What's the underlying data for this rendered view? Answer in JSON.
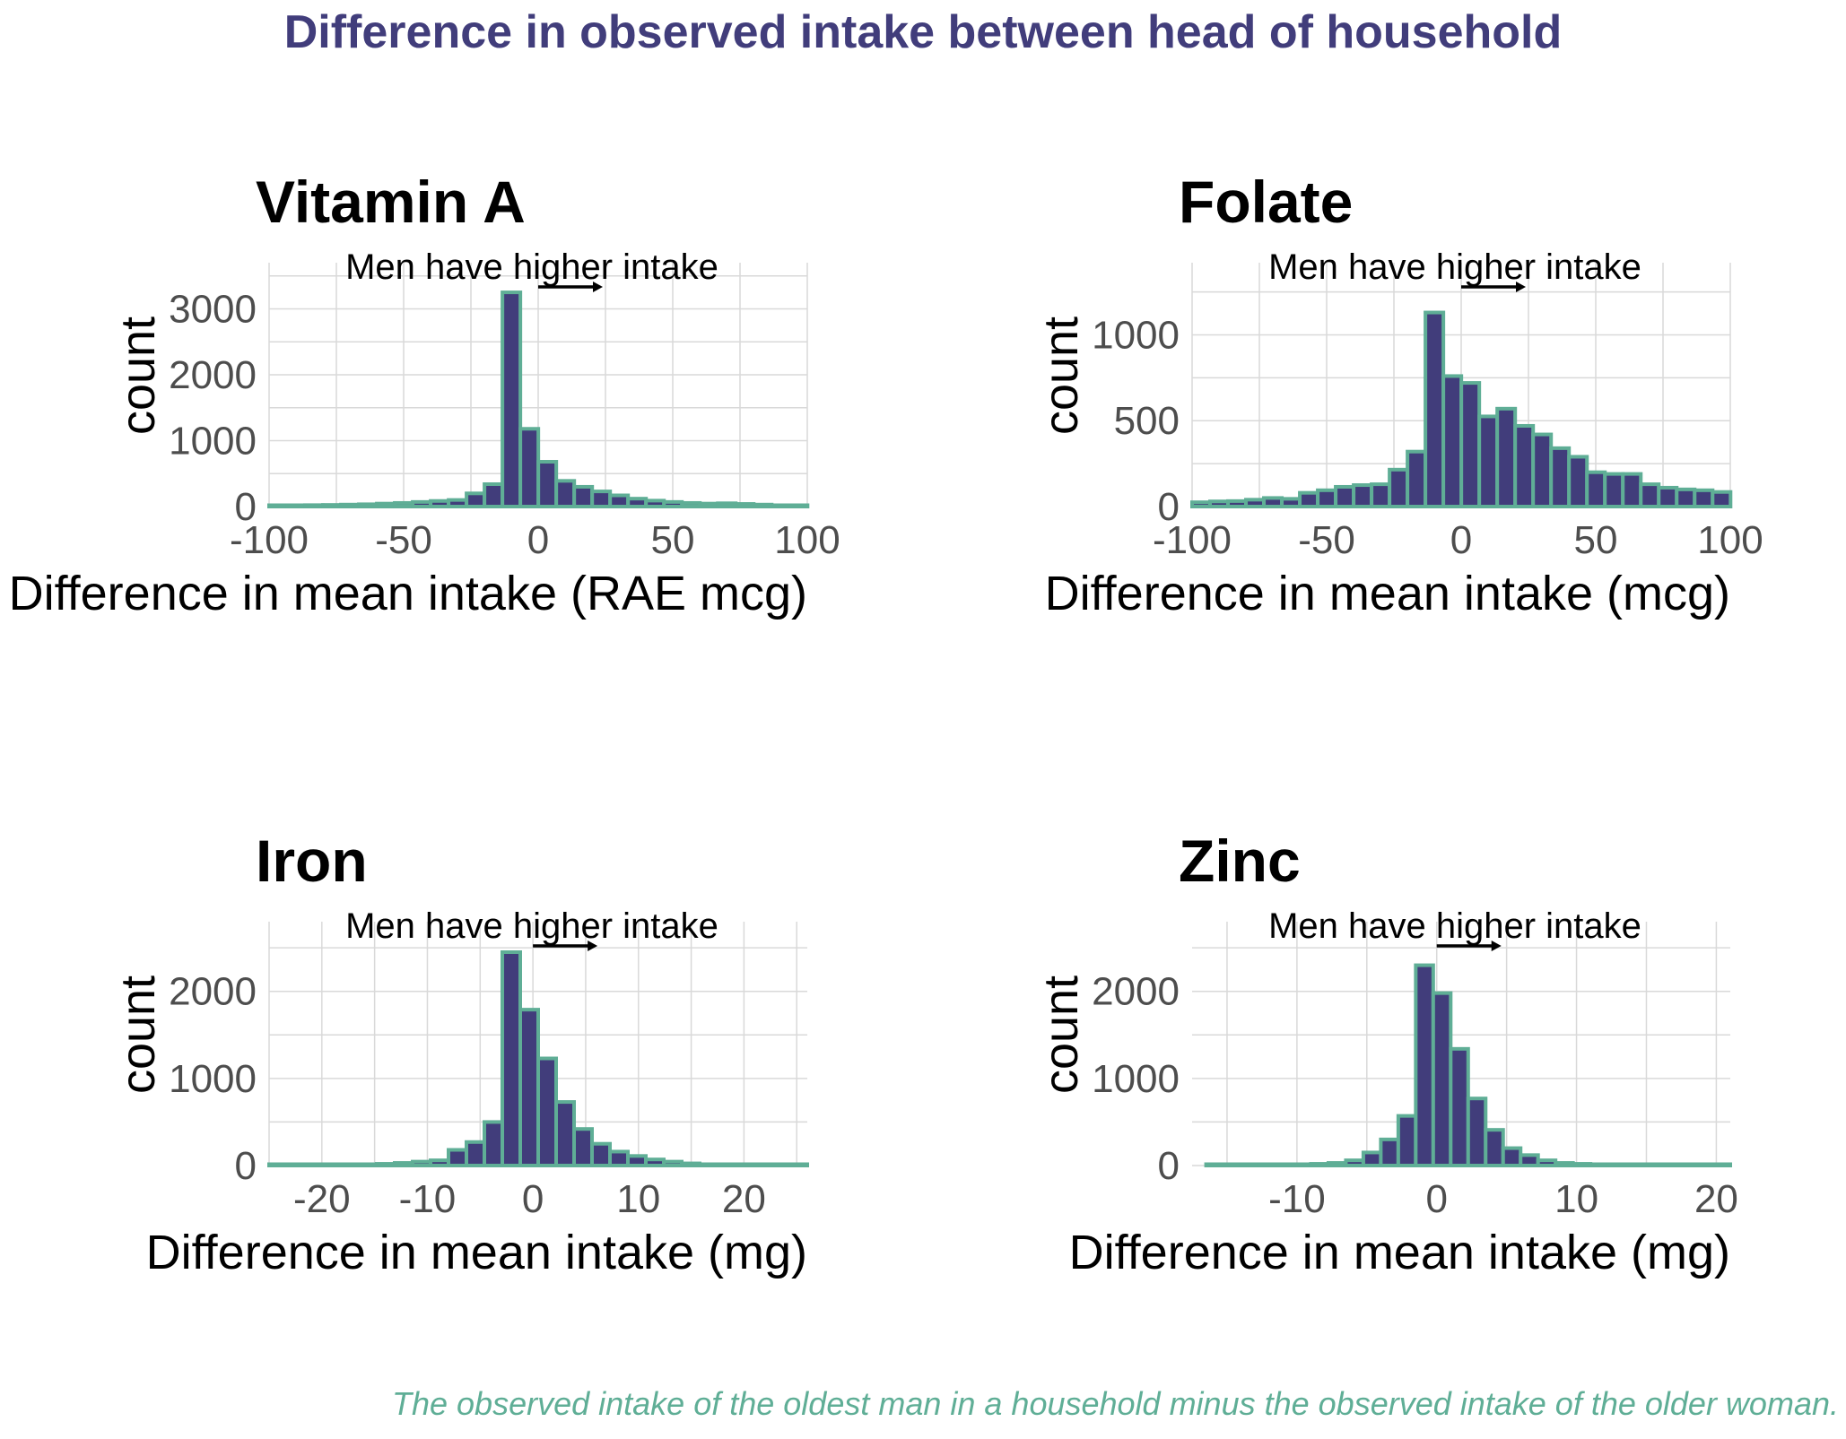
{
  "title": "Difference in observed intake between head of household",
  "caption": "The observed intake of the oldest man in a household minus the observed intake of the older woman.",
  "colors": {
    "bar_fill": "#413d7b",
    "bar_outline": "#5fae96",
    "title": "#413d7b",
    "caption": "#5fae96",
    "grid": "#d9d9d9"
  },
  "chart_data": [
    {
      "type": "bar",
      "title": "Vitamin A",
      "xlabel": "Difference in mean intake (RAE mcg)",
      "ylabel": "count",
      "annotation": "Men have higher intake",
      "xlim": [
        -100,
        100
      ],
      "ylim": [
        0,
        3700
      ],
      "xticks": [
        -100,
        -50,
        0,
        50,
        100
      ],
      "xtick_labels": [
        "-100",
        "-50",
        "0",
        "50",
        "100"
      ],
      "yticks": [
        0,
        1000,
        2000,
        3000
      ],
      "ytick_labels": [
        "0",
        "1000",
        "2000",
        "3000"
      ],
      "bin_start": -100,
      "bin_width": 6.67,
      "values": [
        15,
        18,
        22,
        25,
        30,
        35,
        45,
        55,
        70,
        85,
        100,
        200,
        340,
        3250,
        1180,
        680,
        390,
        300,
        230,
        170,
        120,
        90,
        70,
        55,
        45,
        50,
        40,
        30,
        20,
        15
      ]
    },
    {
      "type": "bar",
      "title": "Folate",
      "xlabel": "Difference in mean intake (mcg)",
      "ylabel": "count",
      "annotation": "Men have higher intake",
      "xlim": [
        -100,
        100
      ],
      "ylim": [
        0,
        1420
      ],
      "xticks": [
        -100,
        -50,
        0,
        50,
        100
      ],
      "xtick_labels": [
        "-100",
        "-50",
        "0",
        "50",
        "100"
      ],
      "yticks": [
        0,
        500,
        1000
      ],
      "ytick_labels": [
        "0",
        "500",
        "1000"
      ],
      "bin_start": -100,
      "bin_width": 6.67,
      "values": [
        25,
        30,
        32,
        40,
        50,
        45,
        80,
        95,
        115,
        125,
        130,
        215,
        320,
        1130,
        760,
        720,
        525,
        570,
        470,
        420,
        340,
        290,
        200,
        190,
        190,
        130,
        110,
        100,
        95,
        85
      ]
    },
    {
      "type": "bar",
      "title": "Iron",
      "xlabel": "Difference in mean intake (mg)",
      "ylabel": "count",
      "annotation": "Men have higher intake",
      "xlim": [
        -25,
        26
      ],
      "ylim": [
        0,
        2800
      ],
      "xticks": [
        -20,
        -10,
        0,
        10,
        20
      ],
      "xtick_labels": [
        "-20",
        "-10",
        "0",
        "10",
        "20"
      ],
      "bin_start": -25,
      "bin_width": 1.7,
      "yticks": [
        0,
        1000,
        2000
      ],
      "ytick_labels": [
        "0",
        "1000",
        "2000"
      ],
      "values": [
        5,
        6,
        8,
        10,
        12,
        15,
        20,
        30,
        45,
        60,
        180,
        270,
        500,
        2450,
        1790,
        1230,
        730,
        420,
        250,
        160,
        110,
        70,
        45,
        25,
        15,
        10,
        8,
        6,
        5,
        4
      ]
    },
    {
      "type": "bar",
      "title": "Zinc",
      "xlabel": "Difference in mean intake (mg)",
      "ylabel": "count",
      "annotation": "Men have higher intake",
      "xlim": [
        -17.5,
        21
      ],
      "ylim": [
        0,
        2800
      ],
      "xticks": [
        -10,
        0,
        10,
        20
      ],
      "xtick_labels": [
        "-10",
        "0",
        "10",
        "20"
      ],
      "yticks": [
        0,
        1000,
        2000
      ],
      "ytick_labels": [
        "0",
        "1000",
        "2000"
      ],
      "bin_start": -16.5,
      "bin_width": 1.25,
      "values": [
        5,
        6,
        8,
        10,
        12,
        15,
        20,
        30,
        60,
        150,
        300,
        570,
        2300,
        1980,
        1340,
        770,
        410,
        200,
        120,
        60,
        30,
        20,
        12,
        8,
        6,
        5,
        4,
        3,
        2,
        2
      ]
    }
  ]
}
